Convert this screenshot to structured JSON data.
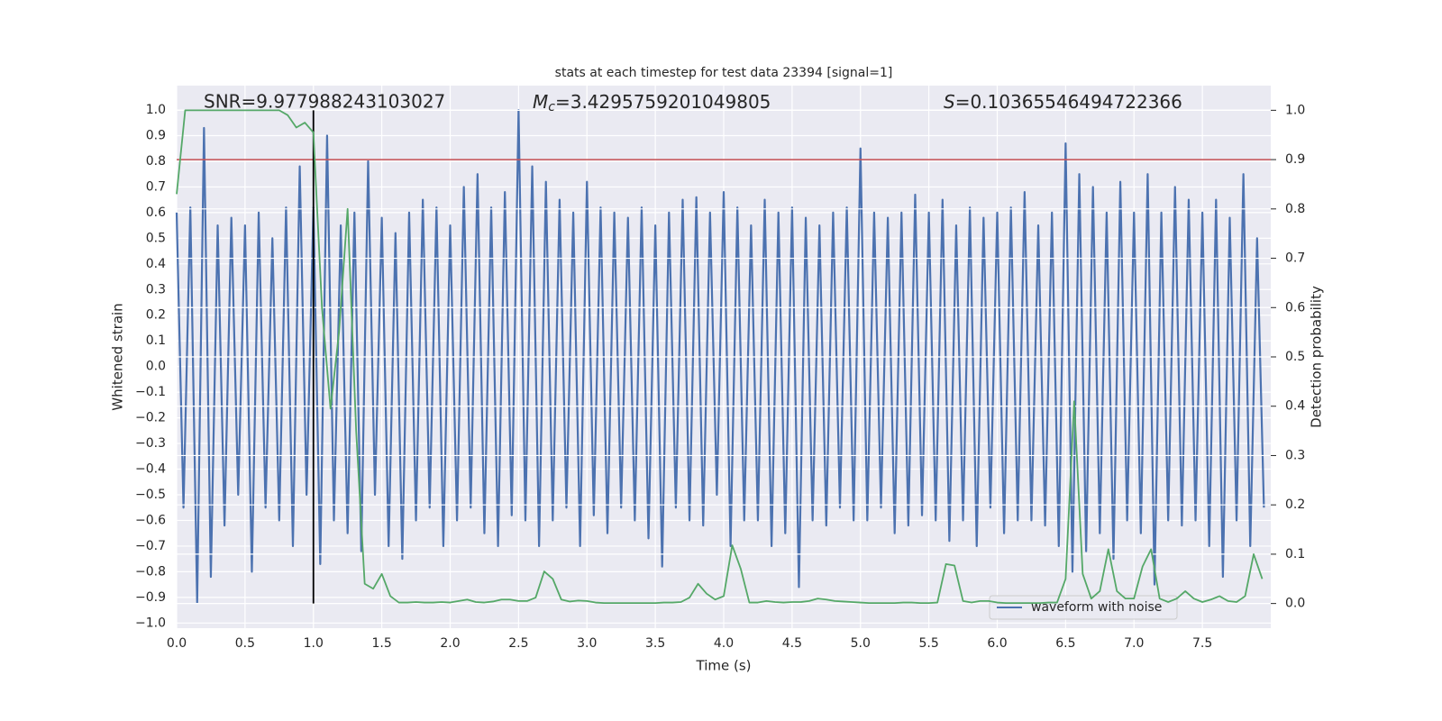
{
  "chart_data": {
    "type": "line",
    "title": "stats at each timestep for test data 23394 [signal=1]",
    "xlabel": "Time (s)",
    "ylabel": "Whitened strain",
    "y2label": "Detection probability",
    "annotations": [
      {
        "text": "SNR=9.977988243103027"
      },
      {
        "symbol": "M",
        "subscript": "c",
        "text": "=3.4295759201049805"
      },
      {
        "symbol": "S",
        "text": "=0.10365546494722366"
      }
    ],
    "xlim": [
      0,
      8
    ],
    "ylim": [
      -1.02,
      1.095
    ],
    "y2lim": [
      -0.05,
      1.05
    ],
    "xticks": [
      {
        "value": 0,
        "label": "0.0"
      },
      {
        "value": 0.5,
        "label": "0.5"
      },
      {
        "value": 1,
        "label": "1.0"
      },
      {
        "value": 1.5,
        "label": "1.5"
      },
      {
        "value": 2,
        "label": "2.0"
      },
      {
        "value": 2.5,
        "label": "2.5"
      },
      {
        "value": 3,
        "label": "3.0"
      },
      {
        "value": 3.5,
        "label": "3.5"
      },
      {
        "value": 4,
        "label": "4.0"
      },
      {
        "value": 4.5,
        "label": "4.5"
      },
      {
        "value": 5,
        "label": "5.0"
      },
      {
        "value": 5.5,
        "label": "5.5"
      },
      {
        "value": 6,
        "label": "6.0"
      },
      {
        "value": 6.5,
        "label": "6.5"
      },
      {
        "value": 7,
        "label": "7.0"
      },
      {
        "value": 7.5,
        "label": "7.5"
      }
    ],
    "yticks": [
      {
        "value": -1,
        "label": "−1.0"
      },
      {
        "value": -0.9,
        "label": "−0.9"
      },
      {
        "value": -0.8,
        "label": "−0.8"
      },
      {
        "value": -0.7,
        "label": "−0.7"
      },
      {
        "value": -0.6,
        "label": "−0.6"
      },
      {
        "value": -0.5,
        "label": "−0.5"
      },
      {
        "value": -0.4,
        "label": "−0.4"
      },
      {
        "value": -0.3,
        "label": "−0.3"
      },
      {
        "value": -0.2,
        "label": "−0.2"
      },
      {
        "value": -0.1,
        "label": "−0.1"
      },
      {
        "value": 0,
        "label": "0.0"
      },
      {
        "value": 0.1,
        "label": "0.1"
      },
      {
        "value": 0.2,
        "label": "0.2"
      },
      {
        "value": 0.3,
        "label": "0.3"
      },
      {
        "value": 0.4,
        "label": "0.4"
      },
      {
        "value": 0.5,
        "label": "0.5"
      },
      {
        "value": 0.6,
        "label": "0.6"
      },
      {
        "value": 0.7,
        "label": "0.7"
      },
      {
        "value": 0.8,
        "label": "0.8"
      },
      {
        "value": 0.9,
        "label": "0.9"
      },
      {
        "value": 1,
        "label": "1.0"
      }
    ],
    "y2ticks": [
      {
        "value": 0,
        "label": "0.0"
      },
      {
        "value": 0.1,
        "label": "0.1"
      },
      {
        "value": 0.2,
        "label": "0.2"
      },
      {
        "value": 0.3,
        "label": "0.3"
      },
      {
        "value": 0.4,
        "label": "0.4"
      },
      {
        "value": 0.5,
        "label": "0.5"
      },
      {
        "value": 0.6,
        "label": "0.6"
      },
      {
        "value": 0.7,
        "label": "0.7"
      },
      {
        "value": 0.8,
        "label": "0.8"
      },
      {
        "value": 0.9,
        "label": "0.9"
      },
      {
        "value": 1,
        "label": "1.0"
      }
    ],
    "grid": true,
    "legend": "lower right",
    "series": [
      {
        "name": "waveform with noise",
        "color": "#4c72b0",
        "x": [
          0,
          0.05,
          0.1,
          0.15,
          0.2,
          0.25,
          0.3,
          0.35,
          0.4,
          0.45,
          0.5,
          0.55,
          0.6,
          0.65,
          0.7,
          0.75,
          0.8,
          0.85,
          0.9,
          0.95,
          1,
          1.05,
          1.1,
          1.15,
          1.2,
          1.25,
          1.3,
          1.35,
          1.4,
          1.45,
          1.5,
          1.55,
          1.6,
          1.65,
          1.7,
          1.75,
          1.8,
          1.85,
          1.9,
          1.95,
          2,
          2.05,
          2.1,
          2.15,
          2.2,
          2.25,
          2.3,
          2.35,
          2.4,
          2.45,
          2.5,
          2.55,
          2.6,
          2.65,
          2.7,
          2.75,
          2.8,
          2.85,
          2.9,
          2.95,
          3,
          3.05,
          3.1,
          3.15,
          3.2,
          3.25,
          3.3,
          3.35,
          3.4,
          3.45,
          3.5,
          3.55,
          3.6,
          3.65,
          3.7,
          3.75,
          3.8,
          3.85,
          3.9,
          3.95,
          4,
          4.05,
          4.1,
          4.15,
          4.2,
          4.25,
          4.3,
          4.35,
          4.4,
          4.45,
          4.5,
          4.55,
          4.6,
          4.65,
          4.7,
          4.75,
          4.8,
          4.85,
          4.9,
          4.95,
          5,
          5.05,
          5.1,
          5.15,
          5.2,
          5.25,
          5.3,
          5.35,
          5.4,
          5.45,
          5.5,
          5.55,
          5.6,
          5.65,
          5.7,
          5.75,
          5.8,
          5.85,
          5.9,
          5.95,
          6,
          6.05,
          6.1,
          6.15,
          6.2,
          6.25,
          6.3,
          6.35,
          6.4,
          6.45,
          6.5,
          6.55,
          6.6,
          6.65,
          6.7,
          6.75,
          6.8,
          6.85,
          6.9,
          6.95,
          7,
          7.05,
          7.1,
          7.15,
          7.2,
          7.25,
          7.3,
          7.35,
          7.4,
          7.45,
          7.5,
          7.55,
          7.6,
          7.65,
          7.7,
          7.75,
          7.8,
          7.85,
          7.9,
          7.95
        ],
        "values": [
          0.6,
          -0.55,
          0.62,
          -0.92,
          0.93,
          -0.82,
          0.55,
          -0.62,
          0.58,
          -0.5,
          0.55,
          -0.8,
          0.6,
          -0.55,
          0.5,
          -0.6,
          0.62,
          -0.7,
          0.78,
          -0.5,
          0.62,
          -0.77,
          0.9,
          -0.6,
          0.55,
          -0.65,
          0.6,
          -0.72,
          0.8,
          -0.5,
          0.58,
          -0.7,
          0.52,
          -0.75,
          0.6,
          -0.6,
          0.65,
          -0.55,
          0.62,
          -0.7,
          0.55,
          -0.6,
          0.7,
          -0.55,
          0.75,
          -0.65,
          0.62,
          -0.7,
          0.68,
          -0.58,
          1.0,
          -0.6,
          0.78,
          -0.7,
          0.72,
          -0.6,
          0.65,
          -0.55,
          0.6,
          -0.7,
          0.72,
          -0.58,
          0.62,
          -0.65,
          0.6,
          -0.55,
          0.58,
          -0.6,
          0.62,
          -0.67,
          0.55,
          -0.78,
          0.6,
          -0.55,
          0.65,
          -0.6,
          0.66,
          -0.62,
          0.6,
          -0.5,
          0.68,
          -0.7,
          0.62,
          -0.6,
          0.55,
          -0.6,
          0.65,
          -0.7,
          0.6,
          -0.65,
          0.62,
          -0.86,
          0.58,
          -0.6,
          0.55,
          -0.62,
          0.6,
          -0.55,
          0.62,
          -0.6,
          0.85,
          -0.6,
          0.6,
          -0.55,
          0.58,
          -0.65,
          0.6,
          -0.62,
          0.67,
          -0.58,
          0.6,
          -0.6,
          0.65,
          -0.68,
          0.55,
          -0.6,
          0.62,
          -0.7,
          0.58,
          -0.55,
          0.6,
          -0.65,
          0.62,
          -0.6,
          0.68,
          -0.6,
          0.55,
          -0.62,
          0.6,
          -0.7,
          0.87,
          -0.8,
          0.75,
          -0.72,
          0.7,
          -0.65,
          0.6,
          -0.75,
          0.72,
          -0.6,
          0.6,
          -0.65,
          0.75,
          -0.85,
          0.6,
          -0.6,
          0.7,
          -0.62,
          0.65,
          -0.6,
          0.6,
          -0.7,
          0.65,
          -0.82,
          0.58,
          -0.6,
          0.75,
          -0.7,
          0.5,
          -0.55
        ]
      },
      {
        "color": "#55a868",
        "axis": "y2",
        "x": [
          0,
          0.0625,
          0.125,
          0.1875,
          0.25,
          0.3125,
          0.375,
          0.4375,
          0.5,
          0.5625,
          0.625,
          0.6875,
          0.75,
          0.8125,
          0.875,
          0.9375,
          1,
          1.0625,
          1.125,
          1.1875,
          1.25,
          1.3125,
          1.375,
          1.4375,
          1.5,
          1.5625,
          1.625,
          1.6875,
          1.75,
          1.8125,
          1.875,
          1.9375,
          2,
          2.0625,
          2.125,
          2.1875,
          2.25,
          2.3125,
          2.375,
          2.4375,
          2.5,
          2.5625,
          2.625,
          2.6875,
          2.75,
          2.8125,
          2.875,
          2.9375,
          3,
          3.0625,
          3.125,
          3.1875,
          3.25,
          3.3125,
          3.375,
          3.4375,
          3.5,
          3.5625,
          3.625,
          3.6875,
          3.75,
          3.8125,
          3.875,
          3.9375,
          4,
          4.0625,
          4.125,
          4.1875,
          4.25,
          4.3125,
          4.375,
          4.4375,
          4.5,
          4.5625,
          4.625,
          4.6875,
          4.75,
          4.8125,
          4.875,
          4.9375,
          5,
          5.0625,
          5.125,
          5.1875,
          5.25,
          5.3125,
          5.375,
          5.4375,
          5.5,
          5.5625,
          5.625,
          5.6875,
          5.75,
          5.8125,
          5.875,
          5.9375,
          6,
          6.0625,
          6.125,
          6.1875,
          6.25,
          6.3125,
          6.375,
          6.4375,
          6.5,
          6.5625,
          6.625,
          6.6875,
          6.75,
          6.8125,
          6.875,
          6.9375,
          7,
          7.0625,
          7.125,
          7.1875,
          7.25,
          7.3125,
          7.375,
          7.4375,
          7.5,
          7.5625,
          7.625,
          7.6875,
          7.75,
          7.8125,
          7.875,
          7.9375
        ],
        "values": [
          0.83,
          1.0,
          1.0,
          1.0,
          1.0,
          1.0,
          1.0,
          1.0,
          1.0,
          1.0,
          1.0,
          1.0,
          1.0,
          0.99,
          0.965,
          0.975,
          0.955,
          0.6,
          0.395,
          0.55,
          0.8,
          0.35,
          0.04,
          0.03,
          0.06,
          0.015,
          0.002,
          0.002,
          0.003,
          0.002,
          0.002,
          0.003,
          0.002,
          0.005,
          0.008,
          0.003,
          0.002,
          0.004,
          0.008,
          0.008,
          0.005,
          0.005,
          0.012,
          0.065,
          0.05,
          0.008,
          0.004,
          0.006,
          0.005,
          0.002,
          0.001,
          0.001,
          0.001,
          0.001,
          0.001,
          0.001,
          0.001,
          0.002,
          0.002,
          0.003,
          0.012,
          0.04,
          0.02,
          0.008,
          0.015,
          0.118,
          0.07,
          0.002,
          0.002,
          0.005,
          0.003,
          0.002,
          0.003,
          0.003,
          0.005,
          0.01,
          0.008,
          0.005,
          0.004,
          0.003,
          0.002,
          0.001,
          0.001,
          0.001,
          0.001,
          0.002,
          0.002,
          0.001,
          0.001,
          0.002,
          0.08,
          0.077,
          0.005,
          0.002,
          0.005,
          0.005,
          0.002,
          0.001,
          0.001,
          0.001,
          0.001,
          0.001,
          0.002,
          0.002,
          0.05,
          0.41,
          0.06,
          0.01,
          0.025,
          0.11,
          0.025,
          0.01,
          0.01,
          0.075,
          0.11,
          0.01,
          0.003,
          0.01,
          0.025,
          0.01,
          0.003,
          0.008,
          0.015,
          0.005,
          0.003,
          0.015,
          0.1,
          0.05
        ]
      }
    ],
    "hlines": [
      {
        "y": 0.9,
        "axis": "y2",
        "color": "#c44e52"
      }
    ],
    "vlines": [
      {
        "x": 1,
        "ymin": 0,
        "ymax": 1,
        "axis": "y2",
        "color": "#000000"
      }
    ]
  }
}
